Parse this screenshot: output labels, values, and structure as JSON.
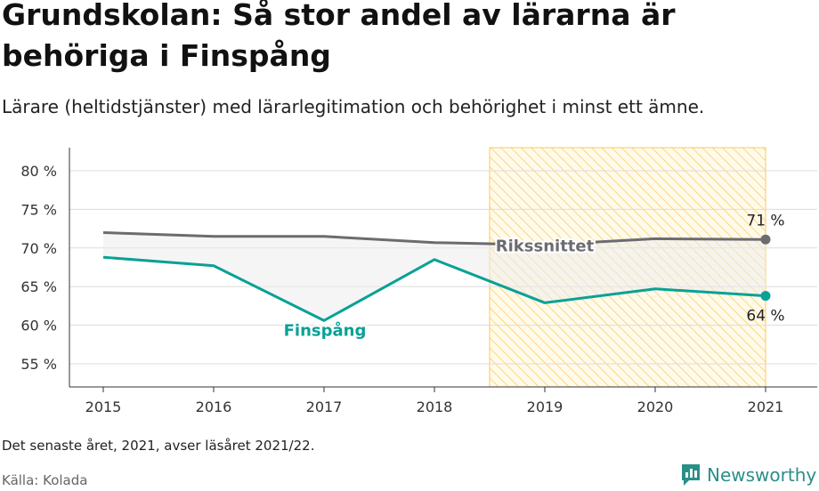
{
  "header": {
    "title": "Grundskolan: Så stor andel av lärarna är behöriga i Finspång",
    "subtitle": "Lärare (heltidstjänster) med lärarlegitimation och behörighet i minst ett ämne."
  },
  "footer": {
    "note": "Det senaste året, 2021, avser läsåret 2021/22.",
    "source": "Källa: Kolada",
    "brand": "Newsworthy"
  },
  "colors": {
    "primary": "#0aa196",
    "average": "#6c6b70",
    "highlight": "#f9c95a",
    "grid": "#dcdcdc"
  },
  "chart_data": {
    "type": "line",
    "x": [
      2015,
      2016,
      2017,
      2018,
      2019,
      2020,
      2021
    ],
    "ylim": [
      52,
      83
    ],
    "yticks": [
      55,
      60,
      65,
      70,
      75,
      80
    ],
    "ytick_labels": [
      "55 %",
      "60 %",
      "65 %",
      "70 %",
      "75 %",
      "80 %"
    ],
    "highlight_range": [
      2018.5,
      2021
    ],
    "series": [
      {
        "name": "Rikssnittet",
        "values": [
          72.0,
          71.5,
          71.5,
          70.7,
          70.4,
          71.2,
          71.1
        ],
        "end_label": "71 %"
      },
      {
        "name": "Finspång",
        "values": [
          68.8,
          67.7,
          60.6,
          68.5,
          62.9,
          64.7,
          63.8
        ],
        "end_label": "64 %"
      }
    ]
  }
}
